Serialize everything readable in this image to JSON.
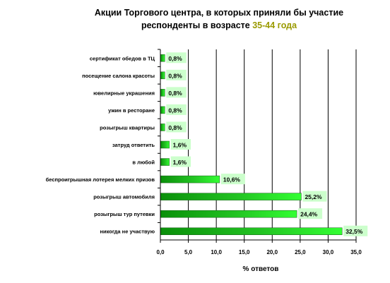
{
  "chart_data": {
    "type": "bar",
    "orientation": "horizontal",
    "title_line1": "Акции Торгового центра, в которых приняли бы участие",
    "title_line2_prefix": "респонденты в возрасте ",
    "title_line2_highlight": "35-44 года",
    "xlabel": "% ответов",
    "ylabel": "",
    "xlim": [
      0,
      35
    ],
    "x_ticks": [
      "0,0",
      "5,0",
      "10,0",
      "15,0",
      "20,0",
      "25,0",
      "30,0",
      "35,0"
    ],
    "x_tick_values": [
      0,
      5,
      10,
      15,
      20,
      25,
      30,
      35
    ],
    "grid": true,
    "legend": "none",
    "categories": [
      "сертификат обедов в ТЦ",
      "посещение салона красоты",
      "ювелирные украшения",
      "ужин в ресторане",
      "розыгрыш квартиры",
      "затруд ответить",
      "в любой",
      "беспроигрышная лотерея мелких призов",
      "розыгрыш автомобиля",
      "розыгрыш тур путевки",
      "никогда не участвую"
    ],
    "values": [
      0.8,
      0.8,
      0.8,
      0.8,
      0.8,
      1.6,
      1.6,
      10.6,
      25.2,
      24.4,
      32.5
    ],
    "data_labels": [
      "0,8%",
      "0,8%",
      "0,8%",
      "0,8%",
      "0,8%",
      "1,6%",
      "1,6%",
      "10,6%",
      "25,2%",
      "24,4%",
      "32,5%"
    ],
    "colors": {
      "bar_light": "#33ff33",
      "bar_dark": "#0a8f0a",
      "label_bg": "#ccffcc",
      "grid": "#000000"
    }
  }
}
